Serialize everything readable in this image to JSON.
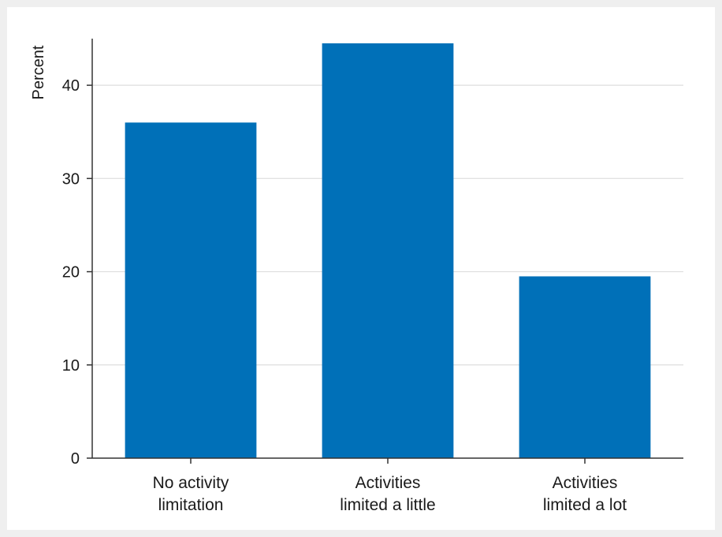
{
  "chart_data": {
    "type": "bar",
    "categories": [
      [
        "No activity",
        "limitation"
      ],
      [
        "Activities",
        "limited a little"
      ],
      [
        "Activities",
        "limited a lot"
      ]
    ],
    "values": [
      36.0,
      44.5,
      19.5
    ],
    "title": "",
    "xlabel": "",
    "ylabel": "Percent",
    "ylim": [
      0,
      45
    ],
    "yticks": [
      0,
      10,
      20,
      30,
      40
    ],
    "grid": true,
    "bar_color": "#0070b8",
    "grid_color": "#dedede",
    "axis_color": "#333333"
  }
}
